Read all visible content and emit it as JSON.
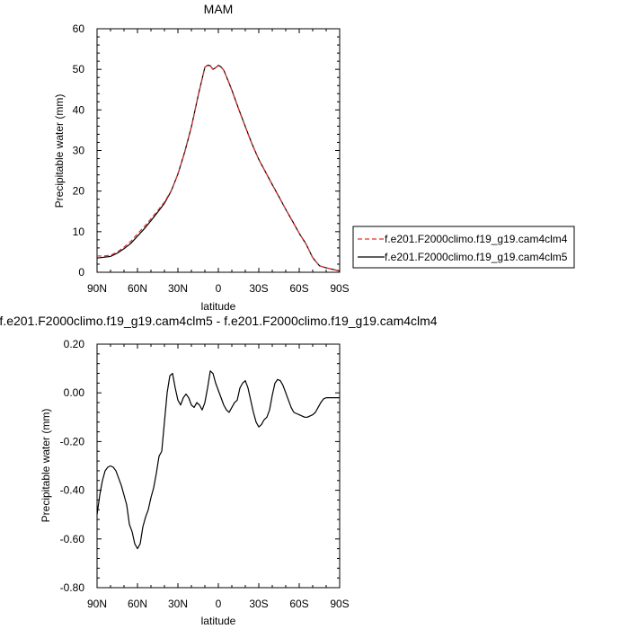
{
  "chart_data": [
    {
      "type": "line",
      "title": "MAM",
      "xlabel": "latitude",
      "ylabel": "Precipitable water (mm)",
      "xlim": [
        90,
        -90
      ],
      "ylim": [
        0,
        60
      ],
      "x_ticks": [
        90,
        60,
        30,
        0,
        -30,
        -60,
        -90
      ],
      "x_tick_labels": [
        "90N",
        "60N",
        "30N",
        "0",
        "30S",
        "60S",
        "90S"
      ],
      "y_ticks": [
        0,
        10,
        20,
        30,
        40,
        50,
        60
      ],
      "y_tick_labels": [
        "0",
        "10",
        "20",
        "30",
        "40",
        "50",
        "60"
      ],
      "grid": false,
      "legend_position": "outside-right",
      "series": [
        {
          "name": "f.e201.F2000climo.f19_g19.cam4clm4",
          "color": "#e0302e",
          "dash": "dashed",
          "x": [
            90,
            85,
            80,
            75,
            70,
            65,
            60,
            55,
            50,
            45,
            40,
            35,
            30,
            25,
            20,
            15,
            10,
            8,
            6,
            4,
            2,
            0,
            -2,
            -4,
            -6,
            -8,
            -10,
            -15,
            -20,
            -25,
            -30,
            -35,
            -40,
            -45,
            -50,
            -55,
            -60,
            -65,
            -70,
            -75,
            -80,
            -85,
            -90
          ],
          "y": [
            4.0,
            4.0,
            4.2,
            5.0,
            6.2,
            7.6,
            9.5,
            11.2,
            13.2,
            15.2,
            17.3,
            20.1,
            24.2,
            29.5,
            35.8,
            43.5,
            50.5,
            51.0,
            50.8,
            50.0,
            50.4,
            50.9,
            50.5,
            49.8,
            48.2,
            46.5,
            44.8,
            40.2,
            35.8,
            31.5,
            27.8,
            24.7,
            21.6,
            18.5,
            15.5,
            12.5,
            9.6,
            7.0,
            3.6,
            1.6,
            1.1,
            0.7,
            0.4
          ]
        },
        {
          "name": "f.e201.F2000climo.f19_g19.cam4clm5",
          "color": "#000000",
          "dash": "solid",
          "x": [
            90,
            85,
            80,
            75,
            70,
            65,
            60,
            55,
            50,
            45,
            40,
            35,
            30,
            25,
            20,
            15,
            10,
            8,
            6,
            4,
            2,
            0,
            -2,
            -4,
            -6,
            -8,
            -10,
            -15,
            -20,
            -25,
            -30,
            -35,
            -40,
            -45,
            -50,
            -55,
            -60,
            -65,
            -70,
            -75,
            -80,
            -85,
            -90
          ],
          "y": [
            3.5,
            3.7,
            3.9,
            4.7,
            5.8,
            7.1,
            8.9,
            10.7,
            12.7,
            14.8,
            17.0,
            20.0,
            24.2,
            29.6,
            35.8,
            43.5,
            50.5,
            51.0,
            50.9,
            50.0,
            50.4,
            51.0,
            50.6,
            49.8,
            48.2,
            46.6,
            44.9,
            40.3,
            35.9,
            31.6,
            27.8,
            24.7,
            21.6,
            18.6,
            15.5,
            12.6,
            9.6,
            7.0,
            3.6,
            1.6,
            1.1,
            0.7,
            0.3
          ]
        }
      ]
    },
    {
      "type": "line",
      "title": "f.e201.F2000climo.f19_g19.cam4clm5 - f.e201.F2000climo.f19_g19.cam4clm4",
      "xlabel": "latitude",
      "ylabel": "Precipitable water (mm)",
      "xlim": [
        90,
        -90
      ],
      "ylim": [
        -0.8,
        0.2
      ],
      "x_ticks": [
        90,
        60,
        30,
        0,
        -30,
        -60,
        -90
      ],
      "x_tick_labels": [
        "90N",
        "60N",
        "30N",
        "0",
        "30S",
        "60S",
        "90S"
      ],
      "y_ticks": [
        -0.8,
        -0.6,
        -0.4,
        -0.2,
        0.0,
        0.2
      ],
      "y_tick_labels": [
        "-0.80",
        "-0.60",
        "-0.40",
        "-0.20",
        "0.00",
        "0.20"
      ],
      "grid": false,
      "series": [
        {
          "color": "#000000",
          "dash": "solid",
          "x": [
            90,
            88,
            86,
            84,
            82,
            80,
            78,
            76,
            74,
            72,
            70,
            68,
            66,
            64,
            62,
            60,
            58,
            56,
            54,
            52,
            50,
            48,
            46,
            44,
            42,
            40,
            38,
            36,
            34,
            32,
            30,
            28,
            26,
            24,
            22,
            20,
            18,
            16,
            14,
            12,
            10,
            8,
            6,
            4,
            2,
            0,
            -2,
            -4,
            -6,
            -8,
            -10,
            -12,
            -14,
            -16,
            -18,
            -20,
            -22,
            -24,
            -26,
            -28,
            -30,
            -32,
            -34,
            -36,
            -38,
            -40,
            -42,
            -44,
            -46,
            -48,
            -50,
            -52,
            -54,
            -56,
            -58,
            -60,
            -62,
            -64,
            -66,
            -68,
            -70,
            -72,
            -74,
            -76,
            -78,
            -80,
            -82,
            -84,
            -86,
            -88,
            -90
          ],
          "y": [
            -0.5,
            -0.42,
            -0.36,
            -0.32,
            -0.305,
            -0.3,
            -0.305,
            -0.32,
            -0.35,
            -0.38,
            -0.42,
            -0.46,
            -0.54,
            -0.57,
            -0.62,
            -0.64,
            -0.62,
            -0.55,
            -0.51,
            -0.48,
            -0.43,
            -0.39,
            -0.33,
            -0.26,
            -0.24,
            -0.12,
            0.0,
            0.07,
            0.08,
            0.02,
            -0.03,
            -0.05,
            -0.02,
            -0.005,
            -0.02,
            -0.05,
            -0.06,
            -0.04,
            -0.05,
            -0.07,
            -0.04,
            0.02,
            0.09,
            0.08,
            0.04,
            0.01,
            -0.02,
            -0.05,
            -0.07,
            -0.08,
            -0.06,
            -0.04,
            -0.03,
            0.02,
            0.04,
            0.05,
            0.02,
            -0.03,
            -0.08,
            -0.12,
            -0.14,
            -0.13,
            -0.11,
            -0.1,
            -0.07,
            -0.01,
            0.04,
            0.055,
            0.05,
            0.03,
            0.0,
            -0.03,
            -0.06,
            -0.08,
            -0.085,
            -0.09,
            -0.095,
            -0.1,
            -0.1,
            -0.095,
            -0.09,
            -0.08,
            -0.06,
            -0.04,
            -0.025,
            -0.02,
            -0.02,
            -0.02,
            -0.02,
            -0.02,
            -0.02
          ]
        }
      ]
    }
  ]
}
